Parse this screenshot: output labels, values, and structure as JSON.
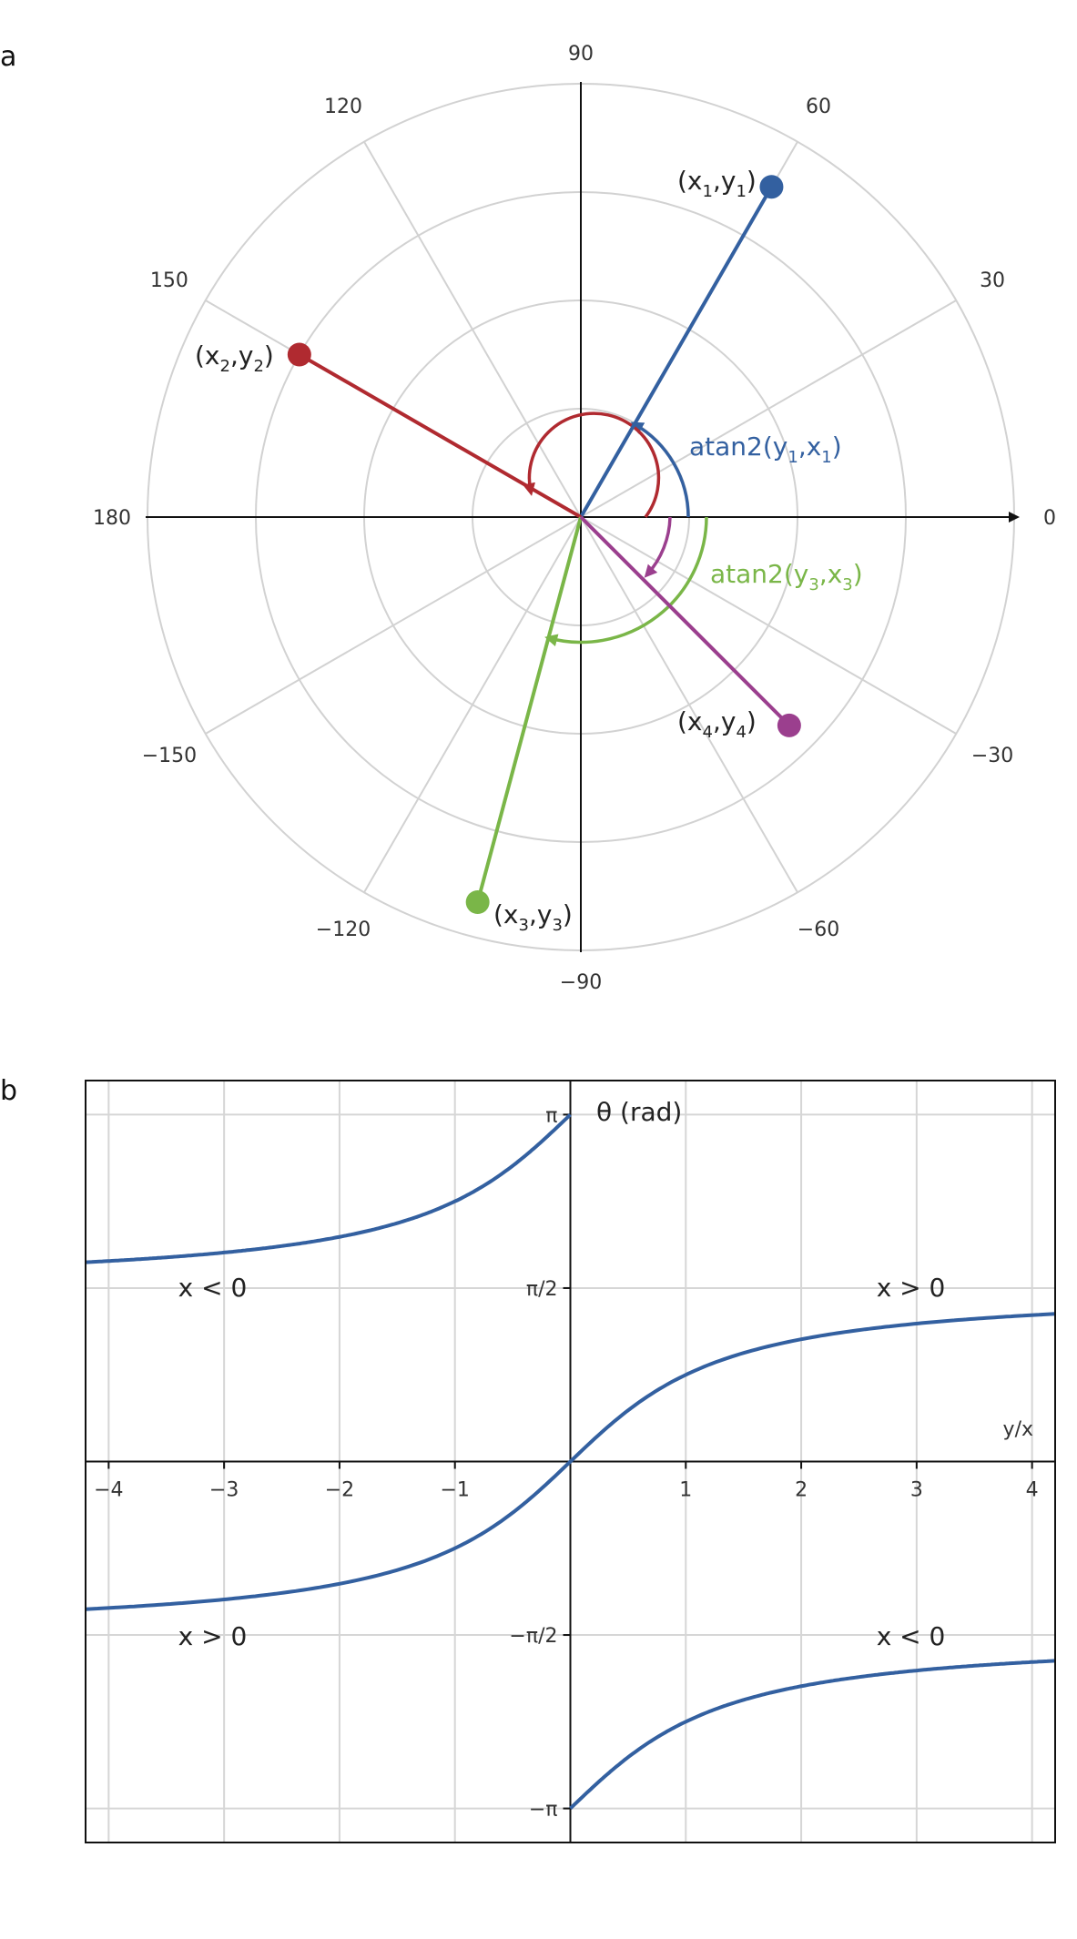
{
  "panels": {
    "a": {
      "panel_label": "a",
      "angle_ticks": [
        {
          "deg": 0,
          "label": "0"
        },
        {
          "deg": 30,
          "label": "30"
        },
        {
          "deg": 60,
          "label": "60"
        },
        {
          "deg": 90,
          "label": "90"
        },
        {
          "deg": 120,
          "label": "120"
        },
        {
          "deg": 150,
          "label": "150"
        },
        {
          "deg": 180,
          "label": "180"
        },
        {
          "deg": -150,
          "label": "−150"
        },
        {
          "deg": -120,
          "label": "−120"
        },
        {
          "deg": -90,
          "label": "−90"
        },
        {
          "deg": -60,
          "label": "−60"
        },
        {
          "deg": -30,
          "label": "−30"
        }
      ],
      "points": [
        {
          "id": "p1",
          "base": "(x",
          "s1": "1",
          "mid": ",y",
          "s2": "1",
          "end": ")",
          "color": "#3360a0",
          "angle_deg": 60,
          "r": 0.88
        },
        {
          "id": "p2",
          "base": "(x",
          "s1": "2",
          "mid": ",y",
          "s2": "2",
          "end": ")",
          "color": "#b02a30",
          "angle_deg": 150,
          "r": 0.75
        },
        {
          "id": "p3",
          "base": "(x",
          "s1": "3",
          "mid": ",y",
          "s2": "3",
          "end": ")",
          "color": "#7ab648",
          "angle_deg": -105,
          "r": 0.92
        },
        {
          "id": "p4",
          "base": "(x",
          "s1": "4",
          "mid": ",y",
          "s2": "4",
          "end": ")",
          "color": "#9b3f8e",
          "angle_deg": -45,
          "r": 0.68
        }
      ],
      "arc_labels": [
        {
          "id": "a1",
          "base": "atan2(y",
          "s1": "1",
          "mid": ",x",
          "s2": "1",
          "end": ")",
          "color": "#3360a0"
        },
        {
          "id": "a3",
          "base": "atan2(y",
          "s1": "3",
          "mid": ",x",
          "s2": "3",
          "end": ")",
          "color": "#7ab648"
        }
      ]
    },
    "b": {
      "panel_label": "b",
      "chart_data": {
        "type": "line",
        "xlabel": "y/x",
        "ylabel": "θ (rad)",
        "xlim": [
          -4.2,
          4.2
        ],
        "ylim": [
          -3.45,
          3.45
        ],
        "grid": true,
        "x_ticks": [
          {
            "value": -4,
            "label": "−4"
          },
          {
            "value": -3,
            "label": "−3"
          },
          {
            "value": -2,
            "label": "−2"
          },
          {
            "value": -1,
            "label": "−1"
          },
          {
            "value": 1,
            "label": "1"
          },
          {
            "value": 2,
            "label": "2"
          },
          {
            "value": 3,
            "label": "3"
          },
          {
            "value": 4,
            "label": "4"
          }
        ],
        "y_ticks": [
          {
            "value": 3.14159,
            "label": "π"
          },
          {
            "value": 1.5708,
            "label": "π/2"
          },
          {
            "value": -1.5708,
            "label": "−π/2"
          },
          {
            "value": -3.14159,
            "label": "−π"
          }
        ],
        "series": [
          {
            "curve": "atan(y/x), x > 0",
            "x": [
              -4.2,
              -3,
              -2,
              -1,
              -0.5,
              0,
              0.5,
              1,
              2,
              3,
              4.2
            ],
            "y": [
              -1.337,
              -1.249,
              -1.107,
              -0.785,
              -0.464,
              0,
              0.464,
              0.785,
              1.107,
              1.249,
              1.337
            ],
            "color": "#3360a0"
          },
          {
            "curve": "atan(y/x) + π, x < 0, y/x < 0",
            "x": [
              -4.2,
              -3,
              -2,
              -1,
              -0.5,
              0
            ],
            "y": [
              1.805,
              1.893,
              2.034,
              2.356,
              2.678,
              3.14159
            ],
            "color": "#3360a0"
          },
          {
            "curve": "atan(y/x) − π, x < 0, y/x > 0",
            "x": [
              0,
              0.5,
              1,
              2,
              3,
              4.2
            ],
            "y": [
              -3.14159,
              -2.678,
              -2.356,
              -2.034,
              -1.893,
              -1.805
            ],
            "color": "#3360a0"
          }
        ],
        "annotations": [
          {
            "text": "x < 0",
            "x": -3.1,
            "y": 1.58
          },
          {
            "text": "x > 0",
            "x": 2.95,
            "y": 1.58
          },
          {
            "text": "x > 0",
            "x": -3.1,
            "y": -1.58
          },
          {
            "text": "x < 0",
            "x": 2.95,
            "y": -1.58
          }
        ]
      }
    }
  }
}
